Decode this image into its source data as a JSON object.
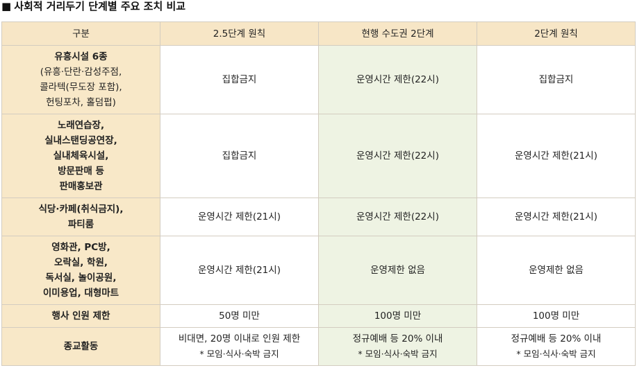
{
  "title": {
    "marker": "■",
    "text": "사회적 거리두기 단계별 주요 조치 비교"
  },
  "table": {
    "headers": [
      "구분",
      "2.5단계 원칙",
      "현행 수도권 2단계",
      "2단계 원칙"
    ],
    "rows": [
      {
        "label_lines": [
          "유흥시설 6종"
        ],
        "label_sub_lines": [
          "(유흥·단란·감성주점,",
          "콜라텍(무도장 포함),",
          "헌팅포차, 홀덤펍)"
        ],
        "cells": [
          [
            "집합금지"
          ],
          [
            "운영시간 제한(22시)"
          ],
          [
            "집합금지"
          ]
        ]
      },
      {
        "label_lines": [
          "노래연습장,",
          "실내스탠딩공연장,",
          "실내체육시설,",
          "방문판매 등",
          "판매홍보관"
        ],
        "label_sub_lines": [],
        "cells": [
          [
            "집합금지"
          ],
          [
            "운영시간 제한(22시)"
          ],
          [
            "운영시간 제한(21시)"
          ]
        ]
      },
      {
        "label_lines": [
          "식당·카페(취식금지),",
          "파티룸"
        ],
        "label_sub_lines": [],
        "cells": [
          [
            "운영시간 제한(21시)"
          ],
          [
            "운영시간 제한(22시)"
          ],
          [
            "운영시간 제한(21시)"
          ]
        ]
      },
      {
        "label_lines": [
          "영화관, PC방,",
          "오락실, 학원,",
          "독서실, 놀이공원,",
          "이미용업, 대형마트"
        ],
        "label_sub_lines": [],
        "cells": [
          [
            "운영시간 제한(21시)"
          ],
          [
            "운영제한 없음"
          ],
          [
            "운영제한 없음"
          ]
        ]
      },
      {
        "label_lines": [
          "행사 인원 제한"
        ],
        "label_sub_lines": [],
        "cells": [
          [
            "50명 미만"
          ],
          [
            "100명 미만"
          ],
          [
            "100명 미만"
          ]
        ]
      },
      {
        "label_lines": [
          "종교활동"
        ],
        "label_sub_lines": [],
        "cells": [
          [
            "비대면, 20명 이내로 인원 제한",
            "* 모임·식사·숙박 금지"
          ],
          [
            "정규예배 등 20% 이내",
            "* 모임·식사·숙박 금지"
          ],
          [
            "정규예배 등 20% 이내",
            "* 모임·식사·숙박 금지"
          ]
        ]
      }
    ]
  },
  "colors": {
    "header_bg": "#f7e6c6",
    "rowhead_bg": "#f8e8c8",
    "highlight_column_bg": "#eef3e3",
    "border": "#d3ccc0"
  }
}
